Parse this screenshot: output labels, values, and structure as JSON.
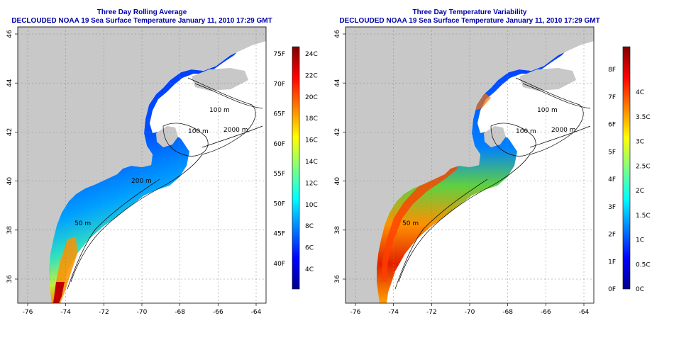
{
  "panels": [
    {
      "title_line1": "Three Day Rolling Average",
      "title_line2": "DECLOUDED NOAA 19 Sea Surface Temperature January 11, 2010 17:29 GMT",
      "colorbar": {
        "left_labels": [
          "75F",
          "70F",
          "65F",
          "60F",
          "55F",
          "50F",
          "45F",
          "40F"
        ],
        "right_labels": [
          "24C",
          "22C",
          "20C",
          "18C",
          "16C",
          "14C",
          "12C",
          "10C",
          "8C",
          "6C",
          "4C"
        ]
      }
    },
    {
      "title_line1": "Three Day Temperature Variability",
      "title_line2": "DECLOUDED NOAA 19 Sea Surface Temperature January 11, 2010 17:29 GMT",
      "colorbar": {
        "left_labels": [
          "8F",
          "7F",
          "6F",
          "5F",
          "4F",
          "3F",
          "2F",
          "1F",
          "0F"
        ],
        "right_labels": [
          "4C",
          "3.5C",
          "3C",
          "2.5C",
          "2C",
          "1.5C",
          "1C",
          "0.5C",
          "0C"
        ]
      }
    }
  ],
  "axes": {
    "lon_ticks": [
      "-76",
      "-74",
      "-72",
      "-70",
      "-68",
      "-66",
      "-64"
    ],
    "lat_ticks": [
      "36",
      "38",
      "40",
      "42",
      "44",
      "46"
    ]
  },
  "contours": {
    "left": [
      "100 m",
      "100 m",
      "2000 m",
      "200 m",
      "50 m"
    ],
    "right": [
      "100 m",
      "100 m",
      "2000 m",
      "50 m"
    ]
  },
  "colors": {
    "land": "#c8c8c8",
    "title": "#0000a8",
    "grid": "#888888"
  }
}
